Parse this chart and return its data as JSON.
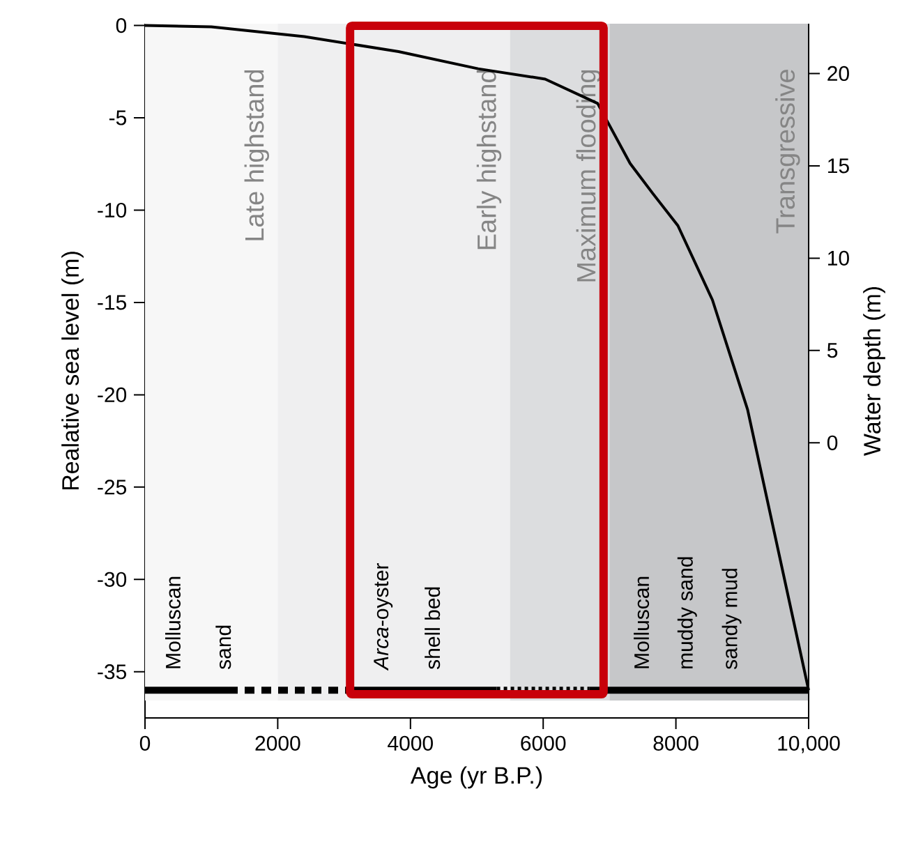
{
  "chart_data": {
    "type": "line",
    "xlabel": "Age (yr B.P.)",
    "ylabel": "Realative sea level (m)",
    "y2label": "Water depth (m)",
    "xlim": [
      0,
      10000
    ],
    "xticks": [
      0,
      2000,
      4000,
      6000,
      8000,
      {
        "value": 10000,
        "label": "10,000"
      }
    ],
    "ylim": [
      -37.5,
      0.1
    ],
    "yticks": [
      -35,
      -30,
      -25,
      -20,
      -15,
      -10,
      -5,
      0
    ],
    "y2lim": [
      -14.9,
      22.7
    ],
    "y2ticks": [
      0,
      5,
      10,
      15,
      20
    ],
    "grid": false,
    "marker": "none",
    "series": [
      {
        "color": "#000000",
        "line_style": "solid",
        "x": [
          0,
          1000,
          2400,
          3820,
          5020,
          6030,
          6820,
          7310,
          7650,
          8030,
          8550,
          9080,
          10000
        ],
        "values": [
          0,
          -0.07,
          -0.6,
          -1.41,
          -2.34,
          -2.9,
          -4.22,
          -7.47,
          -9.09,
          -10.84,
          -14.86,
          -20.8,
          -36
        ]
      },
      {
        "color": "#000000",
        "line_style": "solid",
        "x": [
          0,
          600,
          1250
        ],
        "values": [
          -36,
          -36,
          -36
        ]
      },
      {
        "color": "#000000",
        "line_style": "dashed",
        "x": [
          1250,
          2000,
          3100
        ],
        "values": [
          -36,
          -36,
          -36
        ]
      },
      {
        "color": "#000000",
        "line_style": "solid",
        "x": [
          3100,
          4200,
          5300
        ],
        "values": [
          -36,
          -36,
          -36
        ]
      },
      {
        "color": "#000000",
        "line_style": "dotted",
        "x": [
          5300,
          6000,
          6700
        ],
        "values": [
          -36,
          -36,
          -36
        ]
      },
      {
        "color": "#000000",
        "line_style": "solid",
        "x": [
          6700,
          8400,
          10000
        ],
        "values": [
          -36,
          -36,
          -36
        ]
      }
    ],
    "bands": [
      {
        "axis": "x",
        "from": 0,
        "to": 2000,
        "label": "Late highstand",
        "color": "#f7f7f7"
      },
      {
        "axis": "x",
        "from": 2000,
        "to": 5500,
        "label": "Early highstand",
        "color": "#efeff0"
      },
      {
        "axis": "x",
        "from": 5500,
        "to": 7000,
        "label": "Maximum flooding",
        "color": "#dcdddf"
      },
      {
        "axis": "x",
        "from": 7000,
        "to": 10000,
        "label": "Transgressive",
        "color": "#c6c7c9"
      }
    ],
    "annotations": [
      "Molluscan",
      "sand",
      "*Arca*-oyster",
      "shell bed",
      "Molluscan",
      "muddy sand",
      "sandy mud"
    ]
  }
}
